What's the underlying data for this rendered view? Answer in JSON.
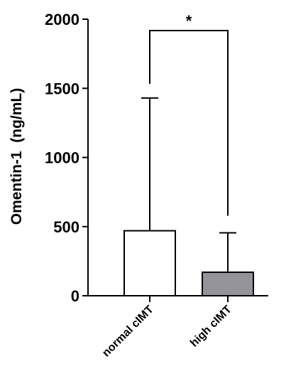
{
  "chart_data": {
    "type": "bar",
    "categories": [
      "normal cIMT",
      "high cIMT"
    ],
    "values": [
      470,
      170
    ],
    "errors": [
      960,
      285
    ],
    "colors": [
      "#ffffff",
      "#939399"
    ],
    "ylabel": "Omentin-1  (ng/mL)",
    "ylim": [
      0,
      2000
    ],
    "yticks": [
      0,
      500,
      1000,
      1500,
      2000
    ],
    "annotation": "*"
  }
}
